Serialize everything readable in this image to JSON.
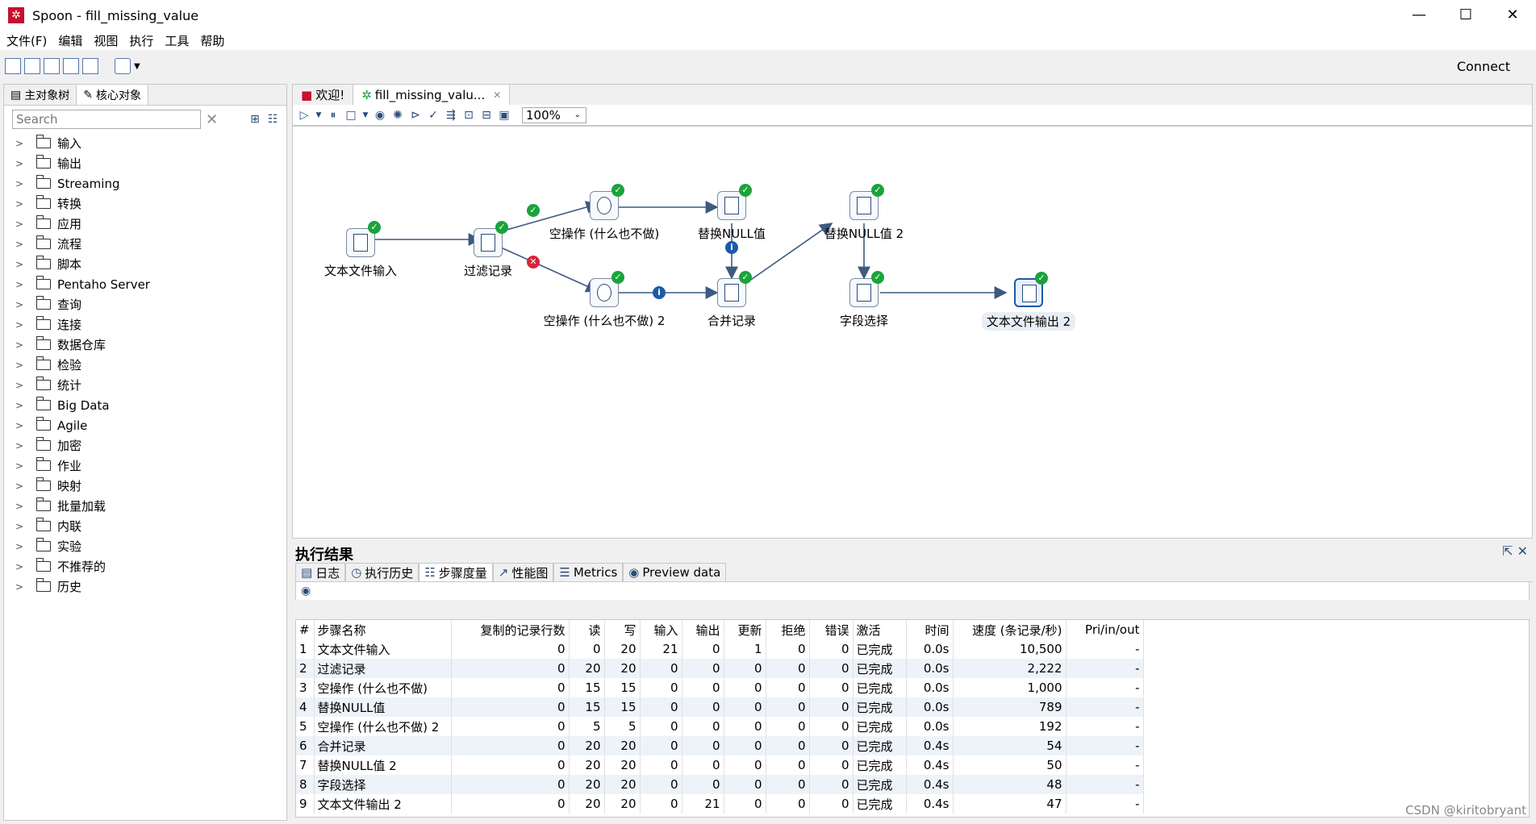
{
  "window": {
    "title": "Spoon - fill_missing_value",
    "logo_glyph": "✲",
    "minimize": "—",
    "maximize": "☐",
    "close": "✕"
  },
  "menu": [
    "文件(F)",
    "编辑",
    "视图",
    "执行",
    "工具",
    "帮助"
  ],
  "toolbar": {
    "connect": "Connect"
  },
  "left": {
    "tabs": [
      "主对象树",
      "核心对象"
    ],
    "search_placeholder": "Search",
    "tree": [
      "输入",
      "输出",
      "Streaming",
      "转换",
      "应用",
      "流程",
      "脚本",
      "Pentaho Server",
      "查询",
      "连接",
      "数据仓库",
      "检验",
      "统计",
      "Big Data",
      "Agile",
      "加密",
      "作业",
      "映射",
      "批量加载",
      "内联",
      "实验",
      "不推荐的",
      "历史"
    ]
  },
  "editor_tabs": [
    {
      "label": "欢迎!"
    },
    {
      "label": "fill_missing_valu..."
    }
  ],
  "zoom": "100%",
  "nodes": {
    "text_input": "文本文件输入",
    "filter": "过滤记录",
    "noop1": "空操作 (什么也不做)",
    "noop2": "空操作 (什么也不做) 2",
    "replace_null": "替换NULL值",
    "merge": "合并记录",
    "replace_null2": "替换NULL值 2",
    "select_fields": "字段选择",
    "text_output2": "文本文件输出 2"
  },
  "results": {
    "title": "执行结果",
    "tabs": [
      "日志",
      "执行历史",
      "步骤度量",
      "性能图",
      "Metrics",
      "Preview data"
    ],
    "columns": [
      "#",
      "步骤名称",
      "复制的记录行数",
      "读",
      "写",
      "输入",
      "输出",
      "更新",
      "拒绝",
      "错误",
      "激活",
      "时间",
      "速度 (条记录/秒)",
      "Pri/in/out"
    ],
    "rows": [
      [
        "1",
        "文本文件输入",
        "0",
        "0",
        "20",
        "21",
        "0",
        "1",
        "0",
        "0",
        "已完成",
        "0.0s",
        "10,500",
        "-"
      ],
      [
        "2",
        "过滤记录",
        "0",
        "20",
        "20",
        "0",
        "0",
        "0",
        "0",
        "0",
        "已完成",
        "0.0s",
        "2,222",
        "-"
      ],
      [
        "3",
        "空操作 (什么也不做)",
        "0",
        "15",
        "15",
        "0",
        "0",
        "0",
        "0",
        "0",
        "已完成",
        "0.0s",
        "1,000",
        "-"
      ],
      [
        "4",
        "替换NULL值",
        "0",
        "15",
        "15",
        "0",
        "0",
        "0",
        "0",
        "0",
        "已完成",
        "0.0s",
        "789",
        "-"
      ],
      [
        "5",
        "空操作 (什么也不做) 2",
        "0",
        "5",
        "5",
        "0",
        "0",
        "0",
        "0",
        "0",
        "已完成",
        "0.0s",
        "192",
        "-"
      ],
      [
        "6",
        "合并记录",
        "0",
        "20",
        "20",
        "0",
        "0",
        "0",
        "0",
        "0",
        "已完成",
        "0.4s",
        "54",
        "-"
      ],
      [
        "7",
        "替换NULL值 2",
        "0",
        "20",
        "20",
        "0",
        "0",
        "0",
        "0",
        "0",
        "已完成",
        "0.4s",
        "50",
        "-"
      ],
      [
        "8",
        "字段选择",
        "0",
        "20",
        "20",
        "0",
        "0",
        "0",
        "0",
        "0",
        "已完成",
        "0.4s",
        "48",
        "-"
      ],
      [
        "9",
        "文本文件输出 2",
        "0",
        "20",
        "20",
        "0",
        "21",
        "0",
        "0",
        "0",
        "已完成",
        "0.4s",
        "47",
        "-"
      ]
    ]
  },
  "watermark": "CSDN @kiritobryant"
}
